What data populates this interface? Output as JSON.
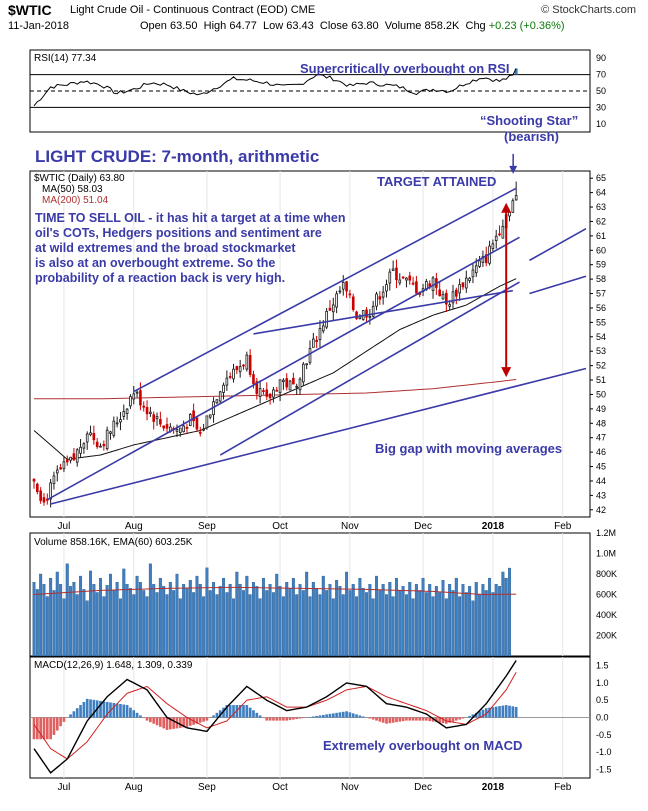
{
  "header": {
    "ticker": "$WTIC",
    "description": "Light Crude Oil - Continuous Contract (EOD)",
    "exchange": "CME",
    "brand": "© StockCharts.com",
    "date": "11-Jan-2018",
    "open_label": "Open",
    "open": "63.50",
    "high_label": "High",
    "high": "64.77",
    "low_label": "Low",
    "low": "63.43",
    "close_label": "Close",
    "close": "63.80",
    "volume_label": "Volume",
    "volume": "858.2K",
    "chg_label": "Chg",
    "chg": "+0.23 (+0.36%)"
  },
  "colors": {
    "annotation": "#3a3aa8",
    "price_up": "#1a1a1a",
    "price_down": "#cc0000",
    "ma50": "#111111",
    "ma200": "#b03030",
    "volume": "#3f7fc0",
    "macd": "#000000",
    "signal": "#d02020",
    "hist_pos": "#3f7fc0",
    "hist_neg": "#e06060",
    "arrow": "#c00000"
  },
  "annotations": {
    "rsi_note": "Supercritically overbought on RSI",
    "shooting_star_1": "“Shooting Star”",
    "shooting_star_2": "(bearish)",
    "title": "LIGHT CRUDE: 7-month, arithmetic",
    "target": "TARGET ATTAINED",
    "body": [
      "TIME TO SELL OIL - it has hit a target at a time when",
      "oil's COTs, Hedgers positions and sentiment are",
      "at wild extremes and the broad stockmarket",
      "is also at an overbought extreme. So the",
      "probability of a reaction back is very high."
    ],
    "gap": "Big gap with moving averages",
    "macd_note": "Extremely overbought on MACD"
  },
  "chart_data": [
    {
      "type": "line",
      "panel": "rsi",
      "legend": "RSI(14)",
      "last_value": "77.34",
      "ylim": [
        0,
        100
      ],
      "yticks": [
        10,
        30,
        50,
        70,
        90
      ],
      "ytick_labels": [
        "10",
        "30",
        "50",
        "70",
        "90"
      ],
      "reference_lines": [
        30,
        50,
        70
      ],
      "series": [
        {
          "name": "RSI(14)",
          "x": [
            0,
            5,
            10,
            15,
            20,
            25,
            30,
            35,
            40,
            45,
            50,
            55,
            60,
            65,
            70,
            75,
            80,
            85,
            90,
            95,
            100,
            105,
            110,
            115,
            120,
            125,
            130,
            135,
            140,
            145,
            150
          ],
          "values": [
            32,
            55,
            58,
            62,
            58,
            47,
            52,
            60,
            58,
            50,
            45,
            55,
            65,
            63,
            60,
            55,
            58,
            70,
            65,
            56,
            60,
            58,
            55,
            48,
            52,
            50,
            60,
            67,
            62,
            70,
            77.34
          ]
        }
      ]
    },
    {
      "type": "candlestick",
      "panel": "price",
      "legend": [
        "$WTIC (Daily) 63.80",
        "MA(50) 58.03",
        "MA(200) 51.04"
      ],
      "x_unit": "trading day since start of visible range",
      "xtick_labels": [
        "Jul",
        "Aug",
        "Sep",
        "Oct",
        "Nov",
        "Dec",
        "2018",
        "Feb"
      ],
      "xtick_days": [
        9,
        30,
        52,
        74,
        95,
        117,
        138,
        159
      ],
      "ylim": [
        41.5,
        65.5
      ],
      "yticks": [
        42,
        43,
        44,
        45,
        46,
        47,
        48,
        49,
        50,
        51,
        52,
        53,
        54,
        55,
        56,
        57,
        58,
        59,
        60,
        61,
        62,
        63,
        64,
        65
      ],
      "ytick_labels": [
        "42",
        "43",
        "44",
        "45",
        "46",
        "47",
        "48",
        "49",
        "50",
        "51",
        "52",
        "53",
        "54",
        "55",
        "56",
        "57",
        "58",
        "59",
        "60",
        "61",
        "62",
        "63",
        "64",
        "65"
      ],
      "close_anchors": {
        "x": [
          0,
          3,
          7,
          12,
          16,
          20,
          26,
          30,
          34,
          38,
          43,
          47,
          50,
          54,
          57,
          60,
          64,
          67,
          70,
          74,
          78,
          81,
          85,
          89,
          93,
          97,
          101,
          104,
          108,
          112,
          116,
          120,
          124,
          128,
          132,
          136,
          140,
          143,
          145
        ],
        "y": [
          44.2,
          42.5,
          44.5,
          45.5,
          47.5,
          46.5,
          48.5,
          50.2,
          49.0,
          48.0,
          47.5,
          48.2,
          47.2,
          49.5,
          51.0,
          51.5,
          52.5,
          50.5,
          49.5,
          51.0,
          50.5,
          52.0,
          54.0,
          56.0,
          57.5,
          55.5,
          55.8,
          57.0,
          58.5,
          57.8,
          57.2,
          58.0,
          56.2,
          57.5,
          58.5,
          59.5,
          61.5,
          63.0,
          63.8
        ]
      },
      "ma50_anchors": {
        "x": [
          0,
          10,
          20,
          30,
          40,
          50,
          60,
          70,
          80,
          90,
          100,
          110,
          120,
          130,
          140,
          145
        ],
        "y": [
          47.5,
          45.5,
          45.8,
          46.5,
          47.0,
          47.5,
          48.5,
          49.5,
          50.5,
          51.5,
          53.0,
          54.5,
          55.5,
          56.2,
          57.5,
          58.03
        ]
      },
      "ma200_anchors": {
        "x": [
          0,
          20,
          40,
          60,
          80,
          100,
          120,
          140,
          145
        ],
        "y": [
          49.7,
          49.7,
          49.8,
          49.9,
          50.0,
          50.1,
          50.4,
          50.9,
          51.04
        ]
      },
      "trendlines": [
        {
          "x": [
            30,
            145
          ],
          "y": [
            50.2,
            64.3
          ]
        },
        {
          "x": [
            4,
            146
          ],
          "y": [
            42.7,
            60.9
          ]
        },
        {
          "x": [
            5,
            166
          ],
          "y": [
            42.4,
            51.8
          ]
        },
        {
          "x": [
            66,
            144
          ],
          "y": [
            54.2,
            57.2
          ]
        },
        {
          "x": [
            56,
            146
          ],
          "y": [
            45.8,
            57.8
          ]
        },
        {
          "x": [
            149,
            166
          ],
          "y": [
            59.3,
            61.5
          ]
        },
        {
          "x": [
            149,
            166
          ],
          "y": [
            57.0,
            58.2
          ]
        }
      ],
      "target_arrow": {
        "x": 142,
        "y": [
          63.3,
          51.2
        ]
      }
    },
    {
      "type": "bar",
      "panel": "volume",
      "legend": "Volume 858.16K, EMA(60) 603.25K",
      "ylim": [
        0,
        1200
      ],
      "yticks": [
        200,
        400,
        600,
        800,
        1000,
        1200
      ],
      "ytick_labels": [
        "200K",
        "400K",
        "600K",
        "800K",
        "1.0M",
        "1.2M"
      ],
      "values_k": [
        720,
        650,
        800,
        700,
        580,
        760,
        640,
        820,
        700,
        560,
        900,
        680,
        720,
        600,
        780,
        650,
        540,
        830,
        700,
        620,
        760,
        580,
        690,
        800,
        640,
        720,
        560,
        850,
        700,
        660,
        600,
        780,
        720,
        640,
        580,
        900,
        700,
        620,
        760,
        680,
        600,
        720,
        640,
        800,
        560,
        700,
        660,
        740,
        620,
        780,
        700,
        580,
        860,
        640,
        720,
        600,
        680,
        760,
        620,
        700,
        560,
        820,
        700,
        640,
        780,
        600,
        720,
        680,
        560,
        760,
        640,
        700,
        620,
        800,
        680,
        580,
        720,
        660,
        760,
        600,
        700,
        640,
        820,
        580,
        720,
        660,
        600,
        780,
        640,
        700,
        560,
        740,
        680,
        600,
        820,
        640,
        700,
        580,
        760,
        660,
        620,
        700,
        560,
        780,
        640,
        700,
        600,
        720,
        580,
        760,
        640,
        680,
        600,
        720,
        560,
        700,
        640,
        760,
        620,
        700,
        580,
        680,
        620,
        740,
        560,
        700,
        640,
        760,
        580,
        700,
        620,
        680,
        540,
        720,
        600,
        700,
        640,
        760,
        620,
        700,
        680,
        820,
        760,
        858.16
      ],
      "ema60_anchors": {
        "x": [
          0,
          20,
          40,
          60,
          80,
          100,
          120,
          135,
          145
        ],
        "y": [
          600,
          640,
          660,
          670,
          660,
          650,
          630,
          600,
          603.25
        ]
      }
    },
    {
      "type": "line",
      "panel": "macd",
      "legend": "MACD(12,26,9) 1.648, 1.309, 0.339",
      "ylim": [
        -1.75,
        1.75
      ],
      "yticks": [
        -1.5,
        -1.0,
        -0.5,
        0.0,
        0.5,
        1.0,
        1.5
      ],
      "ytick_labels": [
        "-1.5",
        "-1.0",
        "-0.5",
        "0.0",
        "0.5",
        "1.0",
        "1.5"
      ],
      "macd_anchors": {
        "x": [
          0,
          5,
          10,
          16,
          22,
          28,
          34,
          40,
          46,
          52,
          58,
          64,
          70,
          76,
          82,
          88,
          94,
          100,
          106,
          112,
          118,
          124,
          130,
          136,
          142,
          145
        ],
        "y": [
          -0.9,
          -1.6,
          -1.2,
          -0.1,
          0.6,
          1.1,
          0.8,
          0.0,
          -0.3,
          -0.4,
          0.3,
          0.9,
          0.5,
          0.2,
          0.3,
          0.6,
          1.0,
          0.9,
          0.4,
          0.3,
          0.1,
          -0.3,
          -0.2,
          0.4,
          1.2,
          1.648
        ]
      },
      "signal_anchors": {
        "x": [
          0,
          5,
          10,
          16,
          22,
          28,
          34,
          40,
          46,
          52,
          58,
          64,
          70,
          76,
          82,
          88,
          94,
          100,
          106,
          112,
          118,
          124,
          130,
          136,
          142,
          145
        ],
        "y": [
          -0.2,
          -0.9,
          -1.2,
          -0.7,
          0.1,
          0.7,
          0.9,
          0.4,
          0.0,
          -0.3,
          -0.1,
          0.5,
          0.6,
          0.3,
          0.3,
          0.5,
          0.8,
          0.9,
          0.6,
          0.4,
          0.2,
          -0.1,
          -0.2,
          0.1,
          0.8,
          1.309
        ]
      },
      "xtick_labels": [
        "Jul",
        "Aug",
        "Sep",
        "Oct",
        "Nov",
        "Dec",
        "2018",
        "Feb"
      ]
    }
  ]
}
